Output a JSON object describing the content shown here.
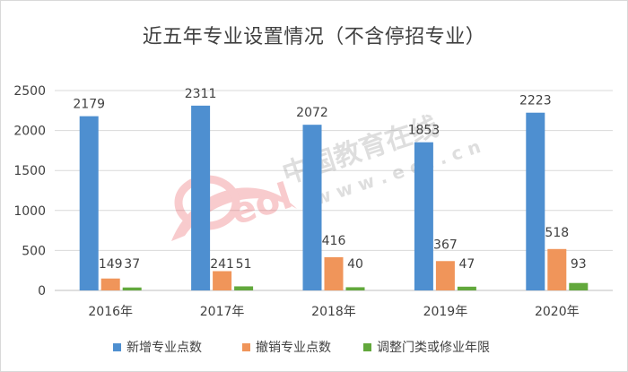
{
  "chart_data": {
    "type": "bar",
    "title": "近五年专业设置情况（不含停招专业）",
    "categories": [
      "2016年",
      "2017年",
      "2018年",
      "2019年",
      "2020年"
    ],
    "series": [
      {
        "name": "新增专业点数",
        "color": "#4e8fd0",
        "values": [
          2179,
          2311,
          2072,
          1853,
          2223
        ]
      },
      {
        "name": "撤销专业点数",
        "color": "#f0955a",
        "values": [
          149,
          241,
          416,
          367,
          518
        ]
      },
      {
        "name": "调整门类或修业年限",
        "color": "#62a83c",
        "values": [
          37,
          51,
          40,
          47,
          93
        ]
      }
    ],
    "yticks": [
      "0",
      "500",
      "1000",
      "1500",
      "2000",
      "2500"
    ],
    "ylim": [
      0,
      2500
    ],
    "grid": true,
    "legend": "bottom"
  },
  "watermark": {
    "brand": "中国教育在线",
    "site": "w w w . e o l . c n",
    "logo_text": "eol",
    "logo_color": "#e8474e"
  }
}
